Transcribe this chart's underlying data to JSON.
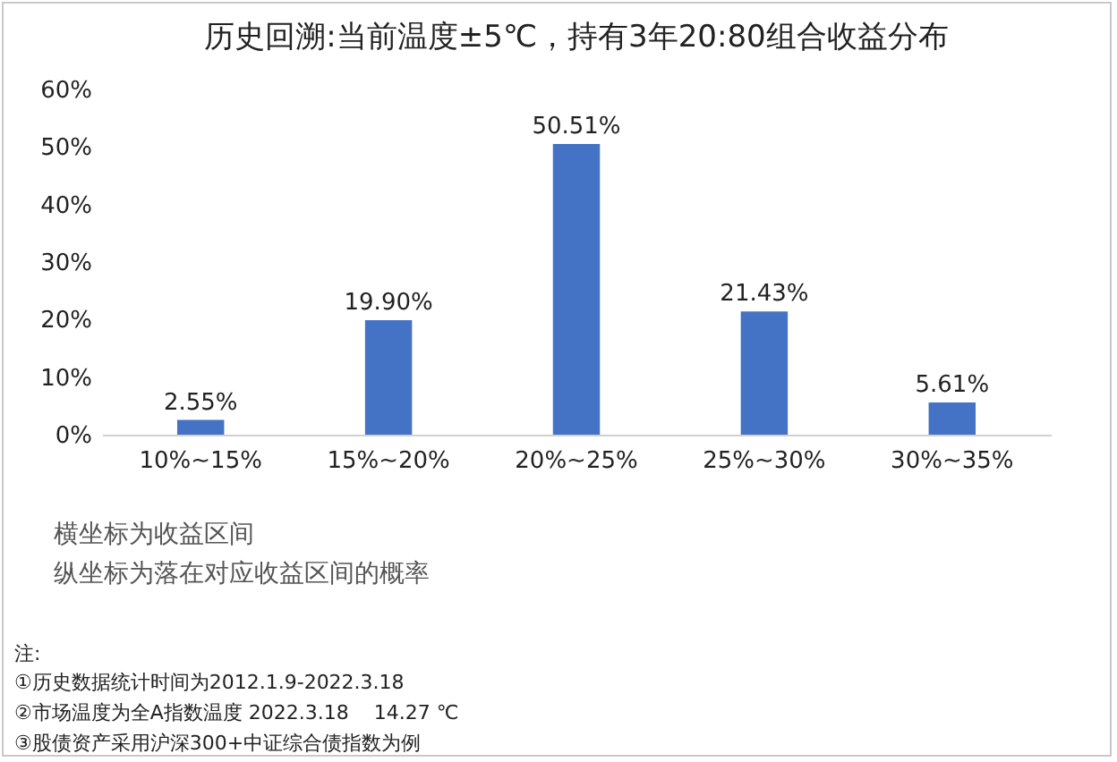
{
  "chart_data": {
    "type": "bar",
    "title": "历史回溯:当前温度±5℃，持有3年20:80组合收益分布",
    "categories": [
      "10%~15%",
      "15%~20%",
      "20%~25%",
      "25%~30%",
      "30%~35%"
    ],
    "values": [
      2.55,
      19.9,
      50.51,
      21.43,
      5.61
    ],
    "value_labels": [
      "2.55%",
      "19.90%",
      "50.51%",
      "21.43%",
      "5.61%"
    ],
    "color": "#4472c4",
    "ylim": [
      0,
      60
    ],
    "yticks": [
      {
        "value": 0,
        "label": "0%"
      },
      {
        "value": 10,
        "label": "10%"
      },
      {
        "value": 20,
        "label": "20%"
      },
      {
        "value": 30,
        "label": "30%"
      },
      {
        "value": 40,
        "label": "40%"
      },
      {
        "value": 50,
        "label": "50%"
      },
      {
        "value": 60,
        "label": "60%"
      }
    ],
    "annotations": [
      "横坐标为收益区间",
      "纵坐标为落在对应收益区间的概率",
      "注:",
      "①历史数据统计时间为2012.1.9-2022.3.18",
      "②市场温度为全A指数温度 2022.3.18    14.27 ℃",
      "③股债资产采用沪深300+中证综合债指数为例"
    ]
  }
}
